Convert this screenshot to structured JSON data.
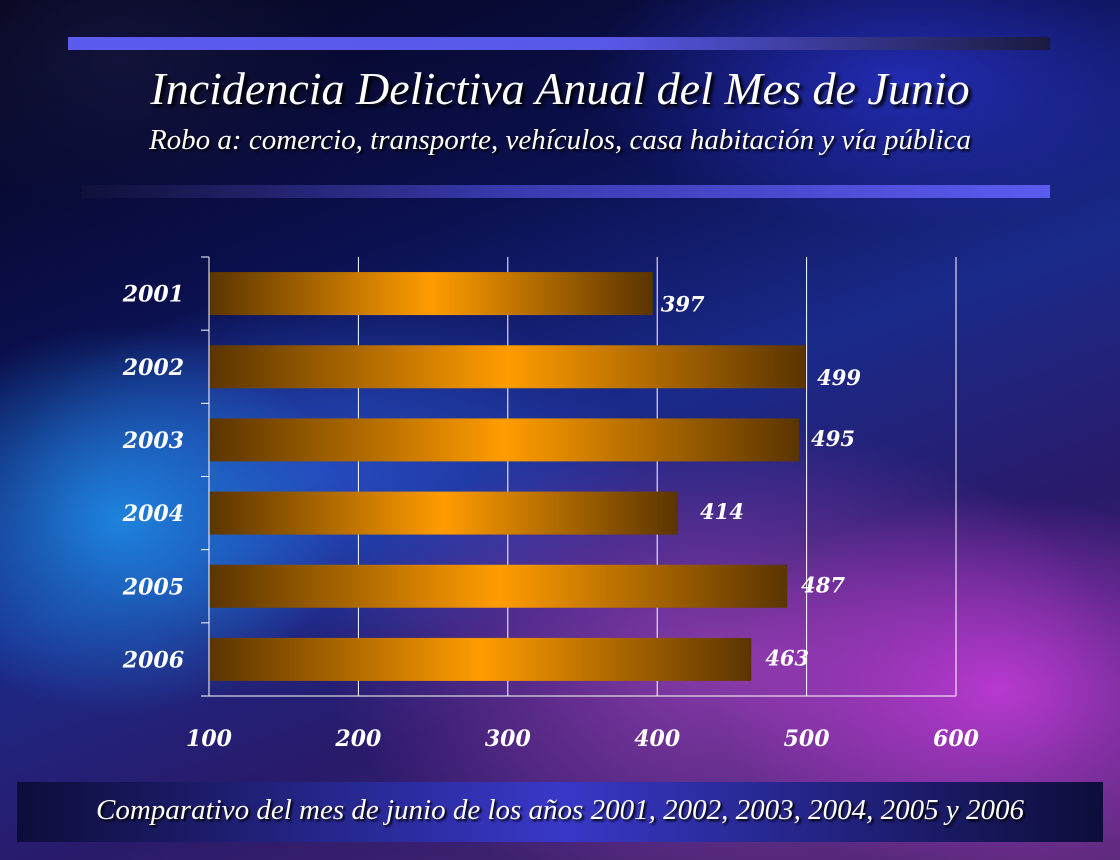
{
  "header": {
    "title": "Incidencia Delictiva Anual del Mes de Junio",
    "subtitle": "Robo a: comercio, transporte, vehículos, casa habitación y vía pública"
  },
  "footer": {
    "text": "Comparativo del mes de junio de los años 2001, 2002, 2003, 2004, 2005 y 2006"
  },
  "colors": {
    "bar_light": "#ff9c00",
    "bar_dark": "#5a3400",
    "rule_blue": "#5b5bf0"
  },
  "chart_data": {
    "type": "bar",
    "orientation": "horizontal",
    "categories": [
      "2001",
      "2002",
      "2003",
      "2004",
      "2005",
      "2006"
    ],
    "values": [
      397,
      499,
      495,
      414,
      487,
      463
    ],
    "xlim": [
      100,
      600
    ],
    "xticks": [
      "100",
      "200",
      "300",
      "400",
      "500",
      "600"
    ],
    "grid": "vertical",
    "legend": "none"
  }
}
